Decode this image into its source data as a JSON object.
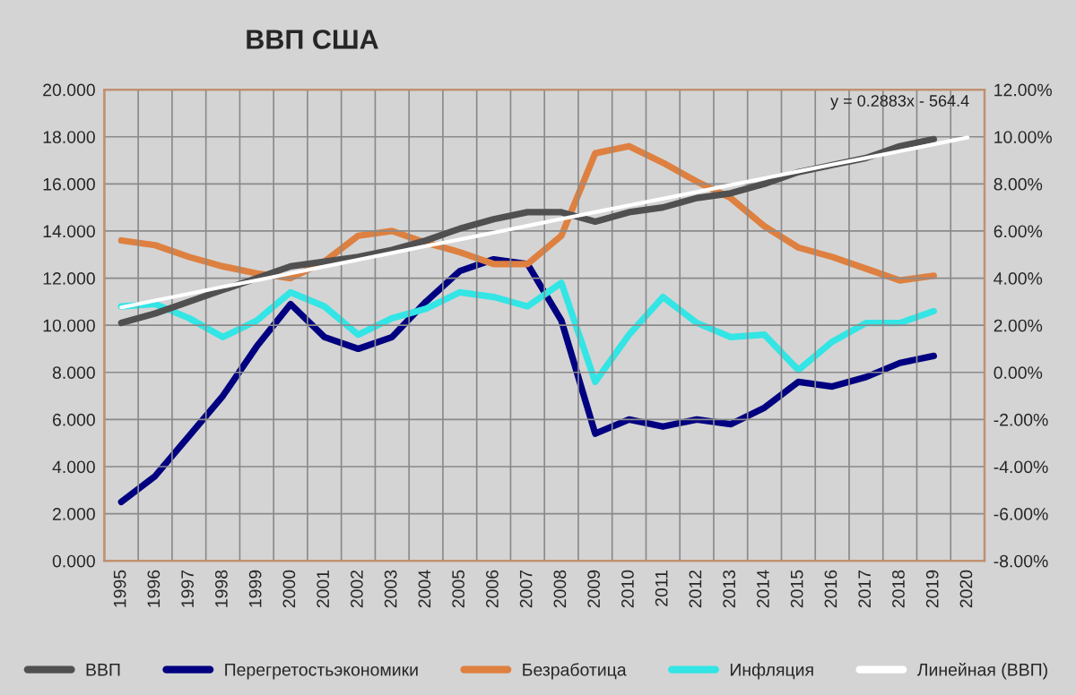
{
  "chart_data": {
    "type": "line",
    "title": "ВВП США",
    "categories": [
      "1995",
      "1996",
      "1997",
      "1998",
      "1999",
      "2000",
      "2001",
      "2002",
      "2003",
      "2004",
      "2005",
      "2006",
      "2007",
      "2008",
      "2009",
      "2010",
      "2011",
      "2012",
      "2013",
      "2014",
      "2015",
      "2016",
      "2017",
      "2018",
      "2019",
      "2020"
    ],
    "series": [
      {
        "name": "ВВП",
        "color": "#505050",
        "values": [
          10.1,
          10.5,
          11.0,
          11.5,
          12.0,
          12.5,
          12.7,
          12.9,
          13.2,
          13.6,
          14.1,
          14.5,
          14.8,
          14.8,
          14.4,
          14.8,
          15.0,
          15.4,
          15.6,
          16.0,
          16.5,
          16.8,
          17.1,
          17.6,
          17.9,
          null
        ]
      },
      {
        "name": "Перегретостьэкономики",
        "color": "#000080",
        "axis": "y2",
        "values": [
          -5.5,
          -4.4,
          -2.7,
          -1.0,
          1.1,
          2.9,
          1.5,
          1.0,
          1.5,
          3.0,
          4.3,
          4.8,
          4.6,
          2.2,
          -2.6,
          -2.0,
          -2.3,
          -2.0,
          -2.2,
          -1.5,
          -0.4,
          -0.6,
          -0.2,
          0.4,
          0.7,
          null
        ]
      },
      {
        "name": "Безработица",
        "color": "#de8040",
        "axis": "y2",
        "values": [
          5.6,
          5.4,
          4.9,
          4.5,
          4.2,
          4.0,
          4.7,
          5.8,
          6.0,
          5.5,
          5.1,
          4.6,
          4.6,
          5.8,
          9.3,
          9.6,
          8.9,
          8.1,
          7.4,
          6.2,
          5.3,
          4.9,
          4.4,
          3.9,
          4.1,
          null
        ]
      },
      {
        "name": "Инфляция",
        "color": "#33e5e5",
        "axis": "y2",
        "values": [
          2.8,
          2.9,
          2.3,
          1.5,
          2.2,
          3.4,
          2.8,
          1.6,
          2.3,
          2.7,
          3.4,
          3.2,
          2.8,
          3.8,
          -0.4,
          1.6,
          3.2,
          2.1,
          1.5,
          1.6,
          0.1,
          1.3,
          2.1,
          2.1,
          2.6,
          null
        ]
      },
      {
        "name": "Линейная (ВВП)",
        "color": "#ffffff",
        "values": [
          10.76,
          11.05,
          11.34,
          11.63,
          11.91,
          12.2,
          12.49,
          12.78,
          13.07,
          13.36,
          13.64,
          13.93,
          14.22,
          14.51,
          14.8,
          15.09,
          15.37,
          15.66,
          15.95,
          16.24,
          16.53,
          16.82,
          17.1,
          17.39,
          17.68,
          17.97
        ]
      }
    ],
    "ylim": [
      0,
      20
    ],
    "yticks": [
      {
        "value": 0,
        "label": "0.000"
      },
      {
        "value": 2,
        "label": "2.000"
      },
      {
        "value": 4,
        "label": "4.000"
      },
      {
        "value": 6,
        "label": "6.000"
      },
      {
        "value": 8,
        "label": "8.000"
      },
      {
        "value": 10,
        "label": "10.000"
      },
      {
        "value": 12,
        "label": "12.000"
      },
      {
        "value": 14,
        "label": "14.000"
      },
      {
        "value": 16,
        "label": "16.000"
      },
      {
        "value": 18,
        "label": "18.000"
      },
      {
        "value": 20,
        "label": "20.000"
      }
    ],
    "y2lim": [
      -8,
      12
    ],
    "y2ticks": [
      {
        "value": -8,
        "label": "-8.00%"
      },
      {
        "value": -6,
        "label": "-6.00%"
      },
      {
        "value": -4,
        "label": "-4.00%"
      },
      {
        "value": -2,
        "label": "-2.00%"
      },
      {
        "value": 0,
        "label": "0.00%"
      },
      {
        "value": 2,
        "label": "2.00%"
      },
      {
        "value": 4,
        "label": "4.00%"
      },
      {
        "value": 6,
        "label": "6.00%"
      },
      {
        "value": 8,
        "label": "8.00%"
      },
      {
        "value": 10,
        "label": "10.00%"
      },
      {
        "value": 12,
        "label": "12.00%"
      }
    ],
    "annotations": [
      {
        "text": "y = 0.2883x - 564.4",
        "x": "2018",
        "y": 17.39
      }
    ],
    "grid": true,
    "legend": "bottom",
    "marker": "none",
    "line_style": "solid"
  }
}
